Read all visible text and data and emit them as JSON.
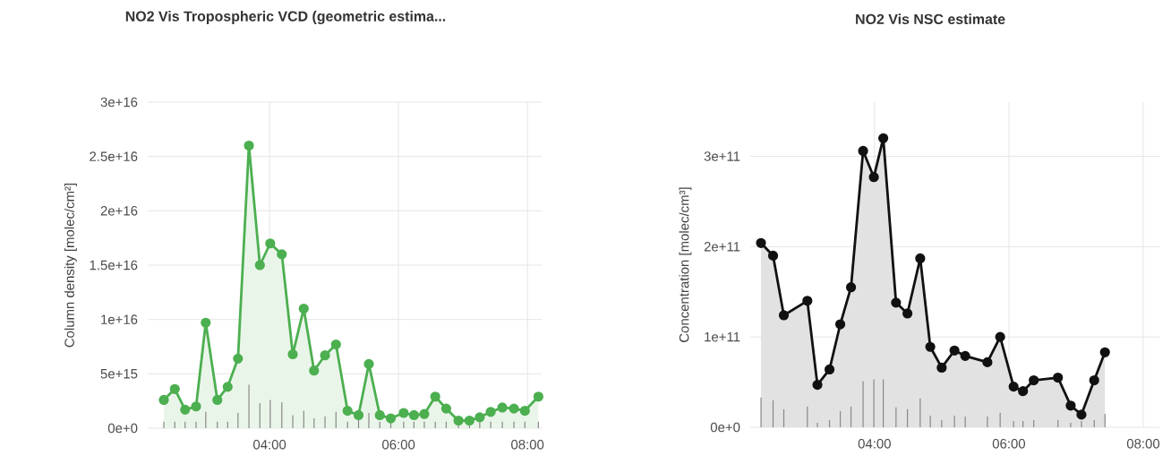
{
  "chart_data": [
    {
      "type": "area",
      "title": "NO2 Vis Tropospheric VCD (geometric estima...",
      "ylabel": "Column density [molec/cm²]",
      "x": [
        2.36,
        2.53,
        2.69,
        2.86,
        3.01,
        3.19,
        3.35,
        3.51,
        3.68,
        3.85,
        4.01,
        4.19,
        4.36,
        4.53,
        4.69,
        4.86,
        5.03,
        5.21,
        5.38,
        5.54,
        5.71,
        5.88,
        6.08,
        6.24,
        6.4,
        6.57,
        6.74,
        6.93,
        7.1,
        7.26,
        7.43,
        7.61,
        7.79,
        7.96,
        8.17
      ],
      "series": [
        {
          "color": "#4caf50",
          "values": [
            2600000000000000.0,
            3600000000000000.0,
            1700000000000000.0,
            2000000000000000.0,
            9700000000000000.0,
            2600000000000000.0,
            3800000000000000.0,
            6400000000000000.0,
            2.6e+16,
            1.5e+16,
            1.7e+16,
            1.6e+16,
            6800000000000000.0,
            1.1e+16,
            5300000000000000.0,
            6700000000000000.0,
            7700000000000000.0,
            1600000000000000.0,
            1200000000000000.0,
            5900000000000000.0,
            1200000000000000.0,
            900000000000000.0,
            1400000000000000.0,
            1200000000000000.0,
            1300000000000000.0,
            2900000000000000.0,
            1800000000000000.0,
            700000000000000.0,
            700000000000000.0,
            1000000000000000.0,
            1500000000000000.0,
            1900000000000000.0,
            1800000000000000.0,
            1600000000000000.0,
            2900000000000000.0
          ]
        },
        {
          "type": "bar",
          "color": "#888888",
          "values": [
            600000000000000.0,
            600000000000000.0,
            600000000000000.0,
            600000000000000.0,
            1500000000000000.0,
            600000000000000.0,
            600000000000000.0,
            1400000000000000.0,
            4000000000000000.0,
            2300000000000000.0,
            2600000000000000.0,
            2400000000000000.0,
            1200000000000000.0,
            1600000000000000.0,
            900000000000000.0,
            1100000000000000.0,
            1500000000000000.0,
            600000000000000.0,
            900000000000000.0,
            1400000000000000.0,
            600000000000000.0,
            600000000000000.0,
            600000000000000.0,
            600000000000000.0,
            600000000000000.0,
            600000000000000.0,
            600000000000000.0,
            300000000000000.0,
            300000000000000.0,
            600000000000000.0,
            600000000000000.0,
            600000000000000.0,
            600000000000000.0,
            600000000000000.0,
            600000000000000.0
          ]
        }
      ],
      "xlim": [
        2.11,
        8.22
      ],
      "ylim": [
        0,
        3e+16
      ],
      "xticks": [
        {
          "value": 4,
          "label": "04:00"
        },
        {
          "value": 6,
          "label": "06:00"
        },
        {
          "value": 8,
          "label": "08:00"
        }
      ],
      "yticks": [
        {
          "value": 0,
          "label": "0e+0"
        },
        {
          "value": 5000000000000000.0,
          "label": "5e+15"
        },
        {
          "value": 1e+16,
          "label": "1e+16"
        },
        {
          "value": 1.5e+16,
          "label": "1.5e+16"
        },
        {
          "value": 2e+16,
          "label": "2e+16"
        },
        {
          "value": 2.5e+16,
          "label": "2.5e+16"
        },
        {
          "value": 3e+16,
          "label": "3e+16"
        }
      ],
      "grid": true,
      "marker": "circle"
    },
    {
      "type": "area",
      "title": "NO2 Vis NSC estimate",
      "ylabel": "Concentration [molec/cm³]",
      "x": [
        2.31,
        2.49,
        2.65,
        3.0,
        3.15,
        3.33,
        3.49,
        3.65,
        3.83,
        3.99,
        4.13,
        4.32,
        4.49,
        4.68,
        4.83,
        5.0,
        5.19,
        5.35,
        5.68,
        5.87,
        6.07,
        6.21,
        6.37,
        6.73,
        6.92,
        7.08,
        7.27,
        7.43
      ],
      "series": [
        {
          "color": "#111111",
          "values": [
            204000000000.0,
            190000000000.0,
            124000000000.0,
            140000000000.0,
            47000000000.0,
            64000000000.0,
            114000000000.0,
            155000000000.0,
            306000000000.0,
            277000000000.0,
            320000000000.0,
            138000000000.0,
            126000000000.0,
            187000000000.0,
            89000000000.0,
            66000000000.0,
            85000000000.0,
            79000000000.0,
            72000000000.0,
            100000000000.0,
            45000000000.0,
            40000000000.0,
            52000000000.0,
            55000000000.0,
            24000000000.0,
            14000000000.0,
            52000000000.0,
            83000000000.0
          ]
        },
        {
          "type": "bar",
          "color": "#888888",
          "values": [
            33000000000.0,
            30000000000.0,
            20000000000.0,
            23000000000.0,
            5000000000.0,
            8000000000.0,
            18000000000.0,
            23000000000.0,
            51000000000.0,
            53000000000.0,
            53000000000.0,
            22000000000.0,
            20000000000.0,
            32000000000.0,
            13000000000.0,
            8000000000.0,
            13000000000.0,
            12000000000.0,
            12000000000.0,
            16000000000.0,
            7000000000.0,
            7000000000.0,
            8000000000.0,
            8000000000.0,
            5000000000.0,
            7000000000.0,
            8000000000.0,
            15000000000.0
          ]
        }
      ],
      "xlim": [
        2.15,
        8.24
      ],
      "ylim": [
        0,
        360000000000.0
      ],
      "xticks": [
        {
          "value": 4,
          "label": "04:00"
        },
        {
          "value": 6,
          "label": "06:00"
        },
        {
          "value": 8,
          "label": "08:00"
        }
      ],
      "yticks": [
        {
          "value": 0,
          "label": "0e+0"
        },
        {
          "value": 100000000000.0,
          "label": "1e+11"
        },
        {
          "value": 200000000000.0,
          "label": "2e+11"
        },
        {
          "value": 300000000000.0,
          "label": "3e+11"
        }
      ],
      "grid": true,
      "marker": "circle"
    }
  ]
}
